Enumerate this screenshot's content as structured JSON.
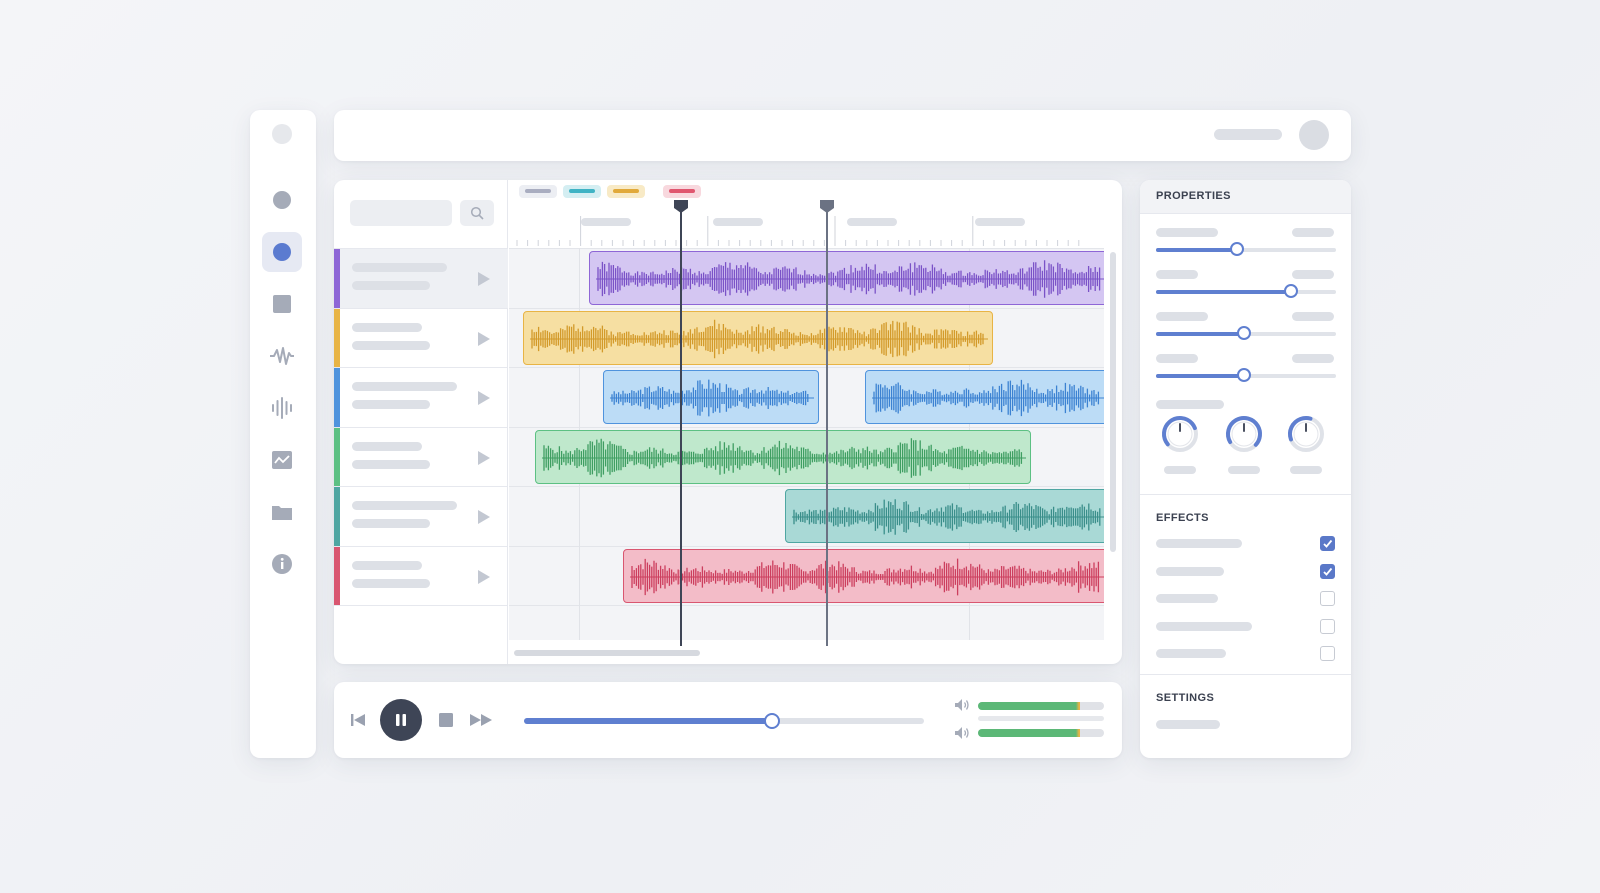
{
  "colors": {
    "accent": "#5f7fd0",
    "track_purple": "#8e66d6",
    "track_yellow": "#e8b445",
    "track_blue": "#4f93dd",
    "track_green": "#5cc083",
    "track_teal": "#4fa6a2",
    "track_red": "#d95670"
  },
  "rail": {
    "icons": [
      "logo-icon",
      "home-icon",
      "record-icon",
      "clip-icon",
      "waveform-icon",
      "spectrum-icon",
      "graph-icon",
      "folder-icon",
      "info-icon"
    ],
    "active": "record-icon"
  },
  "timeline": {
    "tags": [
      "gray",
      "teal",
      "yellow",
      "red"
    ],
    "tracks": [
      {
        "color": "purple",
        "selected": true
      },
      {
        "color": "yellow",
        "selected": false
      },
      {
        "color": "blue",
        "selected": false
      },
      {
        "color": "green",
        "selected": false
      },
      {
        "color": "teal",
        "selected": false
      },
      {
        "color": "red",
        "selected": false
      }
    ]
  },
  "transport": {
    "progress": 0.62,
    "meters": [
      0.81,
      0.81
    ]
  },
  "properties": {
    "title": "PROPERTIES",
    "sliders": [
      0.45,
      0.75,
      0.49,
      0.49
    ],
    "knobs": 3
  },
  "effects": {
    "title": "EFFECTS",
    "checked": [
      true,
      true,
      false,
      false,
      false
    ]
  },
  "settings": {
    "title": "SETTINGS"
  }
}
